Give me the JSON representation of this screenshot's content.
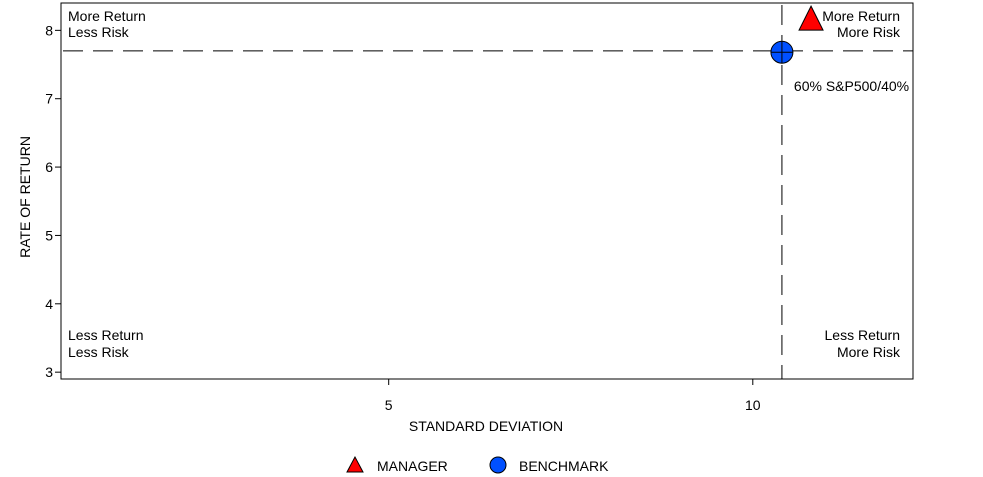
{
  "chart_data": {
    "type": "scatter",
    "title": "",
    "xlabel": "STANDARD DEVIATION",
    "ylabel": "RATE OF RETURN",
    "xlim": [
      0.5,
      12.2
    ],
    "ylim": [
      2.9,
      8.4
    ],
    "xticks": [
      5,
      10
    ],
    "yticks": [
      3,
      4,
      5,
      6,
      7,
      8
    ],
    "grid": false,
    "reference_lines": {
      "x": 10.4,
      "y": 7.7
    },
    "series": [
      {
        "name": "MANAGER",
        "marker": "triangle",
        "color": "#ff0000",
        "points": [
          {
            "x": 10.8,
            "y": 8.15
          }
        ]
      },
      {
        "name": "BENCHMARK",
        "marker": "circle",
        "color": "#0050ff",
        "points": [
          {
            "x": 10.4,
            "y": 7.68
          }
        ]
      }
    ],
    "point_labels": [
      {
        "text": "60% S&P500/40%",
        "series": "BENCHMARK"
      }
    ],
    "quadrant_labels": {
      "top_left": [
        "More Return",
        "Less Risk"
      ],
      "top_right": [
        "More Return",
        "More Risk"
      ],
      "bottom_left": [
        "Less Return",
        "Less Risk"
      ],
      "bottom_right": [
        "Less Return",
        "More Risk"
      ]
    },
    "legend_position": "bottom-center"
  }
}
